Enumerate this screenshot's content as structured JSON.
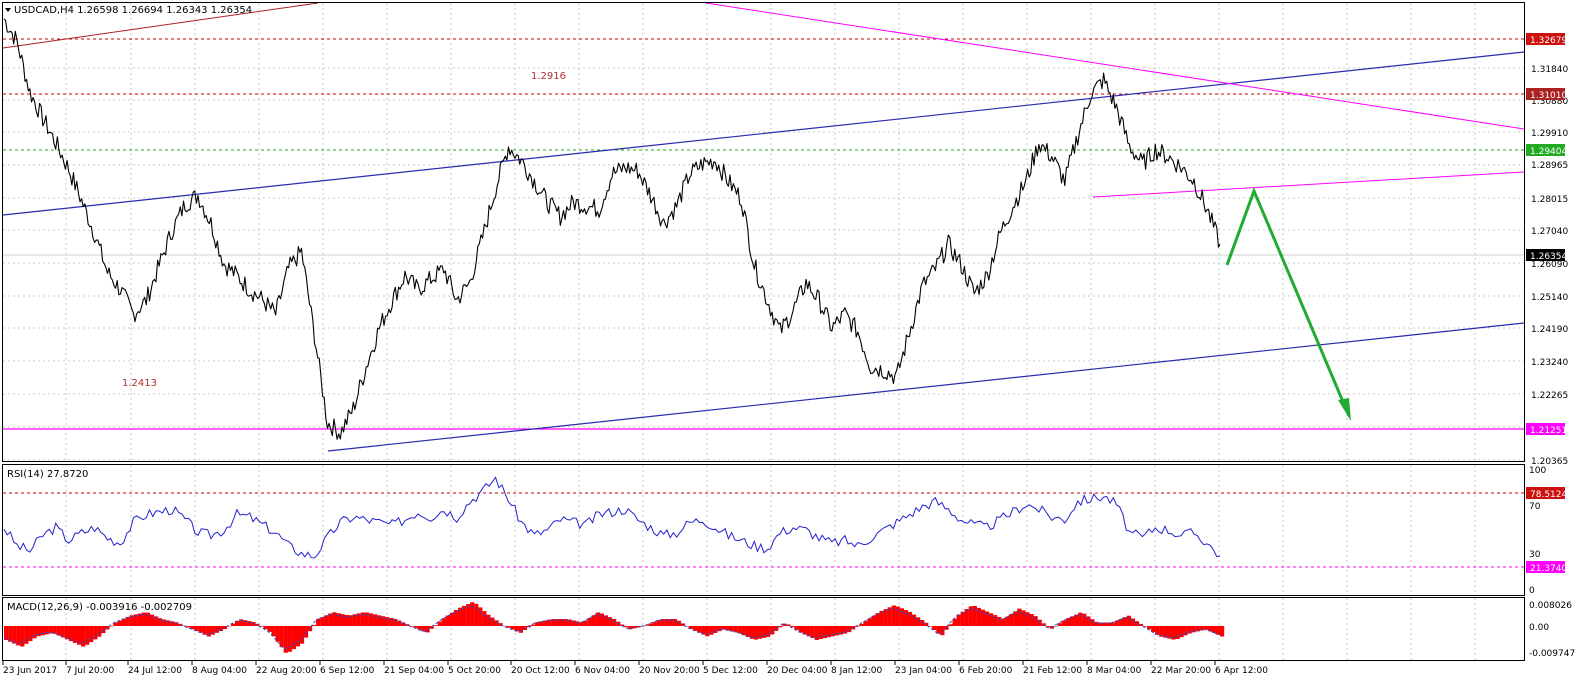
{
  "colors": {
    "background": "#ffffff",
    "frame": "#000000",
    "grid": "#c8c8c8",
    "candles": "#000000",
    "channel": "#2a2ab0",
    "resistance_red": "#cc0000",
    "support_green": "#22aa22",
    "magenta": "#ff00ff",
    "trend_brown": "#b02020",
    "arrow_green": "#22aa33",
    "rsi_line": "#2222cc",
    "macd_hist": "#ff0000",
    "macd_signal": "#2255cc",
    "text": "#000000",
    "annot_red": "#b03030"
  },
  "header": {
    "main": "USDCAD,H4  1.26598 1.26694 1.26343 1.26354",
    "rsi": "RSI(14) 27.8720",
    "macd": "MACD(12,26,9) -0.003916 -0.002709"
  },
  "annotations": {
    "high_label": "1.2916",
    "low_label": "1.2413"
  },
  "price_scale": {
    "ticks": [
      "1.31840",
      "1.30880",
      "1.29910",
      "1.28965",
      "1.28015",
      "1.27040",
      "1.26090",
      "1.25140",
      "1.24190",
      "1.23240",
      "1.22265",
      "1.20365"
    ],
    "flags": [
      {
        "text": "1.32679",
        "kind": "red"
      },
      {
        "text": "1.31010",
        "kind": "red"
      },
      {
        "text": "1.29404",
        "kind": "green"
      },
      {
        "text": "1.26354",
        "kind": "black"
      },
      {
        "text": "1.21251",
        "kind": "magenta"
      }
    ]
  },
  "rsi_scale": {
    "ticks": [
      "100",
      "70",
      "30",
      "0"
    ],
    "flags": [
      {
        "text": "78.5124",
        "kind": "red"
      },
      {
        "text": "21.3740",
        "kind": "magenta"
      }
    ]
  },
  "macd_scale": {
    "ticks": [
      "0.008026",
      "0.00",
      "-0.009747"
    ]
  },
  "time_axis": {
    "labels": [
      "23 Jun 2017",
      "7 Jul 20:00",
      "24 Jul 12:00",
      "8 Aug 04:00",
      "22 Aug 20:00",
      "6 Sep 12:00",
      "21 Sep 04:00",
      "5 Oct 20:00",
      "20 Oct 12:00",
      "6 Nov 04:00",
      "20 Nov 20:00",
      "5 Dec 12:00",
      "20 Dec 04:00",
      "8 Jan 12:00",
      "23 Jan 04:00",
      "6 Feb 20:00",
      "21 Feb 12:00",
      "8 Mar 04:00",
      "22 Mar 20:00",
      "6 Apr 12:00"
    ]
  },
  "chart_data": {
    "type": "candlestick",
    "symbol": "USDCAD",
    "timeframe": "H4",
    "ylim": [
      1.2015,
      1.3325
    ],
    "x": [
      "23 Jun 2017",
      "7 Jul 20:00",
      "24 Jul 12:00",
      "8 Aug 04:00",
      "22 Aug 20:00",
      "6 Sep 12:00",
      "21 Sep 04:00",
      "5 Oct 20:00",
      "20 Oct 12:00",
      "6 Nov 04:00",
      "20 Nov 20:00",
      "5 Dec 12:00",
      "20 Dec 04:00",
      "8 Jan 12:00",
      "23 Jan 04:00",
      "6 Feb 20:00",
      "21 Feb 12:00",
      "8 Mar 04:00",
      "22 Mar 20:00",
      "6 Apr 12:00"
    ],
    "close_path": [
      1.328,
      1.3215,
      1.307,
      1.2995,
      1.2925,
      1.285,
      1.276,
      1.2665,
      1.2555,
      1.2505,
      1.2435,
      1.2475,
      1.2575,
      1.2675,
      1.275,
      1.2775,
      1.2695,
      1.258,
      1.2545,
      1.2505,
      1.2475,
      1.2435,
      1.2565,
      1.2615,
      1.2375,
      1.2125,
      1.2095,
      1.2165,
      1.2285,
      1.2395,
      1.2475,
      1.2545,
      1.2505,
      1.2535,
      1.2565,
      1.2475,
      1.2525,
      1.2655,
      1.2795,
      1.2915,
      1.2875,
      1.2815,
      1.2755,
      1.2715,
      1.2755,
      1.2745,
      1.2735,
      1.2835,
      1.2855,
      1.2845,
      1.2775,
      1.2695,
      1.2745,
      1.2835,
      1.2865,
      1.2875,
      1.2815,
      1.2765,
      1.2575,
      1.2475,
      1.2385,
      1.2445,
      1.2525,
      1.2475,
      1.2395,
      1.2435,
      1.2385,
      1.2285,
      1.2275,
      1.2255,
      1.2385,
      1.2515,
      1.2565,
      1.2635,
      1.2575,
      1.2495,
      1.2545,
      1.2665,
      1.2745,
      1.2815,
      1.2925,
      1.2885,
      1.2815,
      1.2945,
      1.3065,
      1.3105,
      1.3025,
      1.2915,
      1.2865,
      1.2905,
      1.2885,
      1.2855,
      1.2815,
      1.2735,
      1.2635
    ],
    "ohlc_last": {
      "open": 1.26598,
      "high": 1.26694,
      "low": 1.26343,
      "close": 1.26354
    },
    "annotations": [
      "1.2916",
      "1.2413"
    ],
    "horizontal_levels": [
      {
        "value": 1.32679,
        "style": "dashed",
        "color": "red"
      },
      {
        "value": 1.3101,
        "style": "dashed",
        "color": "red"
      },
      {
        "value": 1.29404,
        "style": "dashed",
        "color": "green"
      },
      {
        "value": 1.21251,
        "style": "solid",
        "color": "magenta"
      }
    ],
    "rsi": {
      "period": 14,
      "current": 27.872,
      "levels": [
        78.5124,
        21.374
      ],
      "ylim": [
        0,
        100
      ],
      "values": [
        52,
        38,
        34,
        46,
        52,
        42,
        48,
        52,
        44,
        40,
        56,
        62,
        64,
        66,
        58,
        48,
        46,
        50,
        62,
        60,
        54,
        48,
        38,
        32,
        30,
        44,
        56,
        60,
        58,
        56,
        54,
        58,
        64,
        60,
        66,
        60,
        72,
        80,
        90,
        74,
        56,
        46,
        50,
        58,
        56,
        54,
        62,
        64,
        66,
        58,
        52,
        46,
        48,
        56,
        58,
        52,
        46,
        42,
        38,
        36,
        48,
        52,
        50,
        44,
        40,
        42,
        38,
        44,
        50,
        56,
        62,
        68,
        72,
        66,
        58,
        54,
        52,
        58,
        64,
        70,
        66,
        60,
        58,
        72,
        74,
        76,
        70,
        48,
        44,
        52,
        50,
        46,
        48,
        40,
        30
      ]
    },
    "macd": {
      "fast": 12,
      "slow": 26,
      "signal": 9,
      "main": -0.003916,
      "signal_value": -0.002709,
      "ylim": [
        -0.009747,
        0.008026
      ],
      "values": [
        -0.004,
        -0.006,
        -0.003,
        -0.002,
        -0.004,
        -0.006,
        -0.003,
        0.001,
        0.003,
        0.004,
        0.002,
        0.001,
        -0.001,
        -0.003,
        -0.001,
        0.002,
        0.001,
        -0.002,
        -0.008,
        -0.005,
        0.002,
        0.004,
        0.003,
        0.004,
        0.003,
        0.002,
        0.0,
        -0.002,
        0.002,
        0.005,
        0.007,
        0.003,
        0.0,
        -0.002,
        0.001,
        0.002,
        0.002,
        0.001,
        0.004,
        0.002,
        -0.001,
        0.0,
        0.002,
        0.002,
        -0.001,
        -0.003,
        -0.001,
        -0.002,
        -0.004,
        -0.003,
        0.001,
        -0.002,
        -0.004,
        -0.003,
        -0.002,
        0.001,
        0.004,
        0.006,
        0.004,
        0.001,
        -0.003,
        0.003,
        0.006,
        0.004,
        0.002,
        0.005,
        0.003,
        -0.001,
        0.002,
        0.004,
        0.001,
        0.001,
        0.003,
        0.0,
        -0.003,
        -0.004,
        -0.002,
        -0.001,
        -0.003
      ]
    }
  }
}
